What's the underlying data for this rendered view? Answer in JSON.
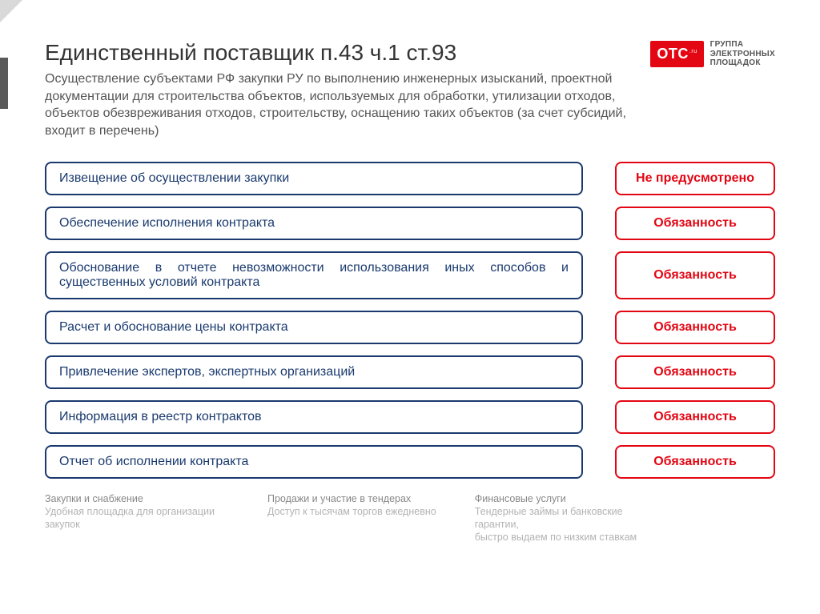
{
  "title": "Единственный поставщик п.43 ч.1 ст.93",
  "subtitle": "Осуществление субъектами РФ закупки РУ по выполнению инженерных изысканий, проектной документации для строительства объектов, используемых для обработки, утилизации отходов, объектов обезвреживания отходов, строительству, оснащению таких объектов (за счет субсидий, входит в перечень)",
  "logo": {
    "badge": "OTC",
    "badge_sub": ".ru",
    "text": "ГРУППА\nЭЛЕКТРОННЫХ\nПЛОЩАДОК"
  },
  "colors": {
    "left_border": "#1a3a6e",
    "left_text": "#1a3a6e",
    "right_border": "#e30613",
    "right_text": "#e30613",
    "title": "#333333",
    "subtitle": "#555555",
    "logo_bg": "#e30613"
  },
  "rows": [
    {
      "left": "Извещение об осуществлении закупки",
      "right": "Не предусмотрено"
    },
    {
      "left": "Обеспечение исполнения контракта",
      "right": "Обязанность"
    },
    {
      "left": "Обоснование в отчете невозможности использования иных способов и существенных условий контракта",
      "right": "Обязанность"
    },
    {
      "left": "Расчет и обоснование цены контракта",
      "right": "Обязанность"
    },
    {
      "left": "Привлечение экспертов, экспертных организаций",
      "right": "Обязанность"
    },
    {
      "left": "Информация в реестр контрактов",
      "right": "Обязанность"
    },
    {
      "left": "Отчет об исполнении контракта",
      "right": "Обязанность"
    }
  ],
  "footer": [
    {
      "title": "Закупки и снабжение",
      "desc": "Удобная площадка для организации закупок"
    },
    {
      "title": "Продажи и участие в тендерах",
      "desc": "Доступ к тысячам торгов ежедневно"
    },
    {
      "title": "Финансовые услуги",
      "desc": "Тендерные займы и банковские гарантии,\nбыстро выдаем по низким ставкам"
    }
  ]
}
